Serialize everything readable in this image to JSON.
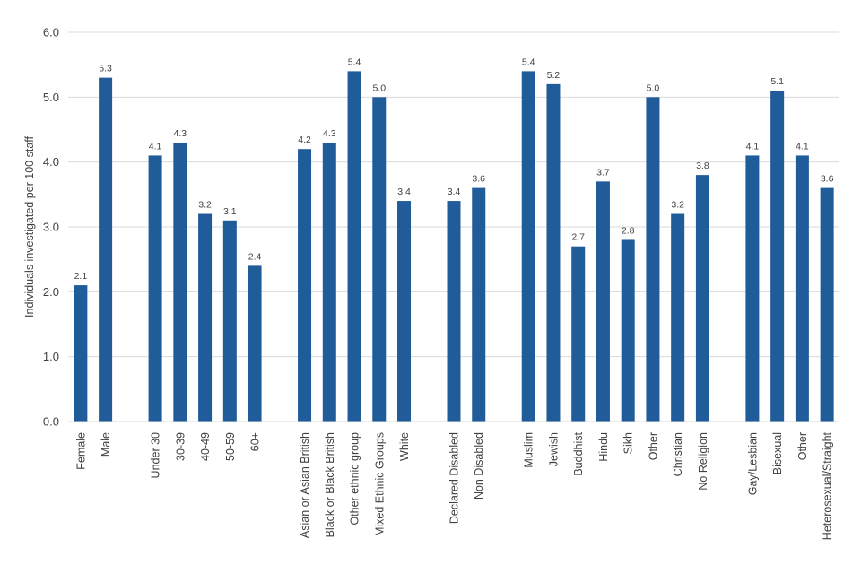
{
  "chart_data": {
    "type": "bar",
    "title": "",
    "xlabel": "",
    "ylabel": "Individuals investigated per 100 staff",
    "ylim": [
      0,
      6
    ],
    "yticks": [
      "0.0",
      "1.0",
      "2.0",
      "3.0",
      "4.0",
      "5.0",
      "6.0"
    ],
    "grid": true,
    "legend": "none",
    "bar_color": "#1F5C99",
    "grid_color": "#D9D9D9",
    "groups": [
      {
        "categories": [
          "Female",
          "Male"
        ],
        "values": [
          2.1,
          5.3
        ],
        "labels": [
          "2.1",
          "5.3"
        ]
      },
      {
        "categories": [
          "Under 30",
          "30-39",
          "40-49",
          "50-59",
          "60+"
        ],
        "values": [
          4.1,
          4.3,
          3.2,
          3.1,
          2.4
        ],
        "labels": [
          "4.1",
          "4.3",
          "3.2",
          "3.1",
          "2.4"
        ]
      },
      {
        "categories": [
          "Asian or Asian British",
          "Black or Black British",
          "Other ethnic group",
          "Mixed Ethnic Groups",
          "White"
        ],
        "values": [
          4.2,
          4.3,
          5.4,
          5.0,
          3.4
        ],
        "labels": [
          "4.2",
          "4.3",
          "5.4",
          "5.0",
          "3.4"
        ]
      },
      {
        "categories": [
          "Declared Disabled",
          "Non Disabled"
        ],
        "values": [
          3.4,
          3.6
        ],
        "labels": [
          "3.4",
          "3.6"
        ]
      },
      {
        "categories": [
          "Muslim",
          "Jewish",
          "Buddhist",
          "Hindu",
          "Sikh",
          "Other",
          "Christian",
          "No Religion"
        ],
        "values": [
          5.4,
          5.2,
          2.7,
          3.7,
          2.8,
          5.0,
          3.2,
          3.8
        ],
        "labels": [
          "5.4",
          "5.2",
          "2.7",
          "3.7",
          "2.8",
          "5.0",
          "3.2",
          "3.8"
        ]
      },
      {
        "categories": [
          "Gay/Lesbian",
          "Bisexual",
          "Other",
          "Heterosexual/Straight"
        ],
        "values": [
          4.1,
          5.1,
          4.1,
          3.6
        ],
        "labels": [
          "4.1",
          "5.1",
          "4.1",
          "3.6"
        ]
      }
    ]
  }
}
